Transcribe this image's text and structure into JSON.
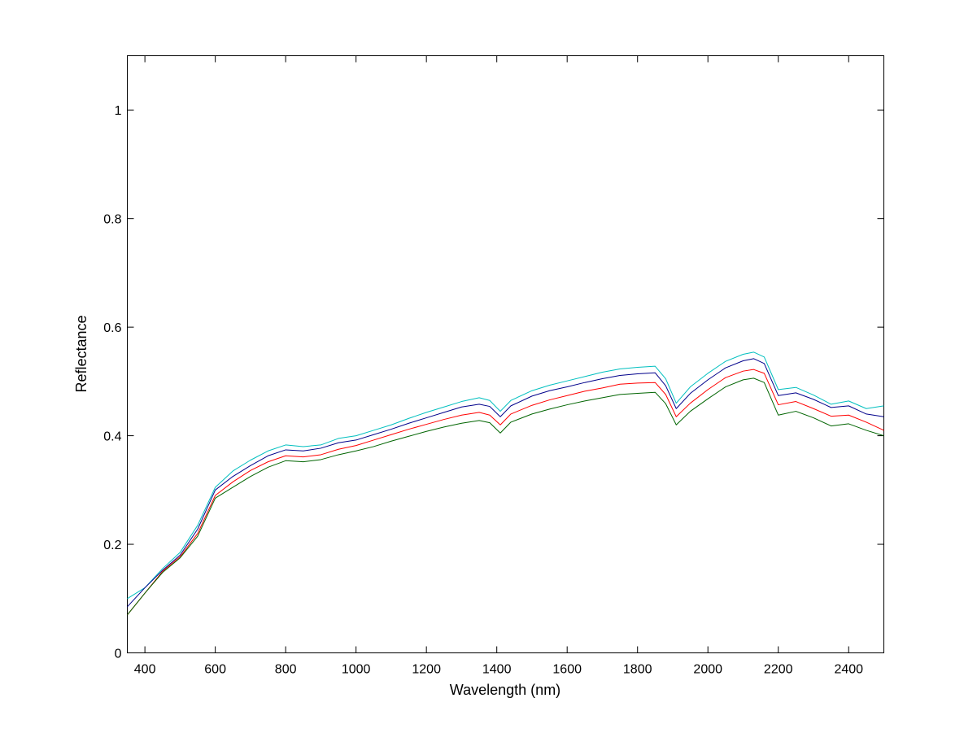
{
  "chart_data": {
    "type": "line",
    "title": "",
    "xlabel": "Wavelength (nm)",
    "ylabel": "Reflectance",
    "xlim": [
      350,
      2500
    ],
    "ylim": [
      0,
      1.1
    ],
    "grid": false,
    "legend": "none",
    "xticks": [
      400,
      600,
      800,
      1000,
      1200,
      1400,
      1600,
      1800,
      2000,
      2200,
      2400
    ],
    "yticks": [
      0,
      0.2,
      0.4,
      0.6,
      0.8,
      1
    ],
    "xtick_labels": [
      "400",
      "600",
      "800",
      "1000",
      "1200",
      "1400",
      "1600",
      "1800",
      "2000",
      "2200",
      "2400"
    ],
    "ytick_labels": [
      "0",
      "0.2",
      "0.4",
      "0.6",
      "0.8",
      "1"
    ],
    "x": [
      350,
      400,
      450,
      500,
      550,
      600,
      650,
      700,
      750,
      800,
      850,
      900,
      950,
      1000,
      1050,
      1100,
      1150,
      1200,
      1250,
      1300,
      1350,
      1380,
      1410,
      1440,
      1500,
      1550,
      1600,
      1650,
      1700,
      1750,
      1800,
      1850,
      1880,
      1910,
      1950,
      2000,
      2050,
      2100,
      2130,
      2160,
      2200,
      2250,
      2300,
      2350,
      2400,
      2450,
      2500
    ],
    "series": [
      {
        "color": "#00bfbf",
        "values": [
          0.1,
          0.12,
          0.155,
          0.185,
          0.235,
          0.305,
          0.335,
          0.355,
          0.372,
          0.383,
          0.38,
          0.383,
          0.395,
          0.4,
          0.41,
          0.42,
          0.432,
          0.443,
          0.453,
          0.463,
          0.47,
          0.465,
          0.445,
          0.465,
          0.483,
          0.493,
          0.501,
          0.509,
          0.517,
          0.523,
          0.526,
          0.528,
          0.505,
          0.46,
          0.49,
          0.515,
          0.537,
          0.55,
          0.554,
          0.545,
          0.485,
          0.489,
          0.475,
          0.458,
          0.464,
          0.45,
          0.455
        ]
      },
      {
        "color": "#00008b",
        "values": [
          0.085,
          0.12,
          0.152,
          0.18,
          0.228,
          0.3,
          0.325,
          0.345,
          0.363,
          0.374,
          0.372,
          0.377,
          0.387,
          0.392,
          0.402,
          0.412,
          0.423,
          0.433,
          0.443,
          0.453,
          0.458,
          0.454,
          0.435,
          0.455,
          0.473,
          0.483,
          0.49,
          0.498,
          0.505,
          0.511,
          0.514,
          0.516,
          0.492,
          0.45,
          0.478,
          0.503,
          0.525,
          0.538,
          0.542,
          0.533,
          0.474,
          0.479,
          0.467,
          0.452,
          0.455,
          0.44,
          0.435
        ]
      },
      {
        "color": "#ff0000",
        "values": [
          0.07,
          0.11,
          0.15,
          0.177,
          0.22,
          0.29,
          0.315,
          0.336,
          0.352,
          0.363,
          0.361,
          0.365,
          0.375,
          0.382,
          0.392,
          0.402,
          0.412,
          0.421,
          0.43,
          0.438,
          0.443,
          0.438,
          0.42,
          0.44,
          0.456,
          0.466,
          0.474,
          0.482,
          0.488,
          0.495,
          0.497,
          0.498,
          0.476,
          0.435,
          0.46,
          0.485,
          0.507,
          0.519,
          0.522,
          0.515,
          0.457,
          0.463,
          0.45,
          0.436,
          0.438,
          0.425,
          0.41
        ]
      },
      {
        "color": "#006400",
        "values": [
          0.07,
          0.11,
          0.148,
          0.175,
          0.215,
          0.285,
          0.305,
          0.325,
          0.342,
          0.354,
          0.352,
          0.356,
          0.365,
          0.372,
          0.38,
          0.39,
          0.399,
          0.408,
          0.416,
          0.423,
          0.428,
          0.424,
          0.405,
          0.425,
          0.44,
          0.449,
          0.457,
          0.464,
          0.47,
          0.476,
          0.478,
          0.48,
          0.459,
          0.42,
          0.445,
          0.468,
          0.49,
          0.503,
          0.506,
          0.498,
          0.438,
          0.445,
          0.433,
          0.418,
          0.422,
          0.41,
          0.4
        ]
      }
    ]
  }
}
